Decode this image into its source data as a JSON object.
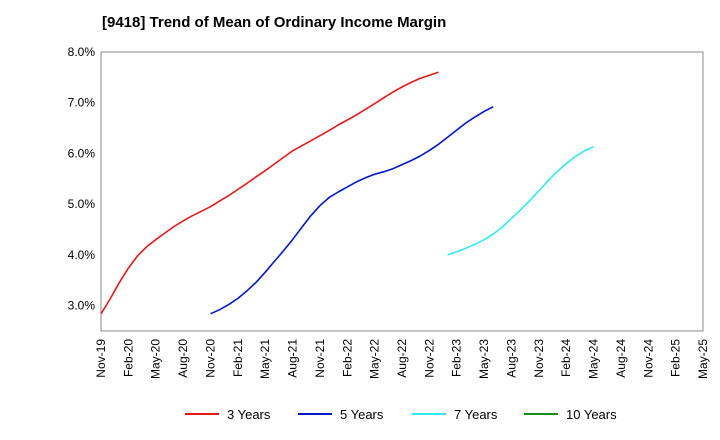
{
  "chart_data": {
    "type": "line",
    "title": "[9418]  Trend of Mean of Ordinary Income Margin",
    "xlabel": "",
    "ylabel": "",
    "ylim": [
      2.5,
      8.0
    ],
    "y_ticks": [
      3.0,
      4.0,
      5.0,
      6.0,
      7.0,
      8.0
    ],
    "y_tick_labels": [
      "3.0%",
      "4.0%",
      "5.0%",
      "6.0%",
      "7.0%",
      "8.0%"
    ],
    "x_tick_labels": [
      "Nov-19",
      "Feb-20",
      "May-20",
      "Aug-20",
      "Nov-20",
      "Feb-21",
      "May-21",
      "Aug-21",
      "Nov-21",
      "Feb-22",
      "May-22",
      "Aug-22",
      "Nov-22",
      "Feb-23",
      "May-23",
      "Aug-23",
      "Nov-23",
      "Feb-24",
      "May-24",
      "Aug-24",
      "Nov-24",
      "Feb-25",
      "May-25"
    ],
    "grid": true,
    "legend_position": "bottom",
    "series": [
      {
        "name": "3 Years",
        "color": "#e31a1c",
        "values": [
          2.84,
          3.13,
          3.45,
          3.74,
          3.98,
          4.16,
          4.3,
          4.43,
          4.56,
          4.67,
          4.77,
          4.86,
          4.95,
          5.06,
          5.17,
          5.29,
          5.41,
          5.54,
          5.66,
          5.79,
          5.92,
          6.05,
          6.15,
          6.25,
          6.35,
          6.45,
          6.56,
          6.66,
          6.76,
          6.87,
          6.98,
          7.1,
          7.21,
          7.31,
          7.4,
          7.48,
          7.54,
          7.6
        ]
      },
      {
        "name": "5 Years",
        "color": "#0018c8",
        "values": [
          null,
          null,
          null,
          null,
          null,
          null,
          null,
          null,
          null,
          null,
          null,
          null,
          2.84,
          2.92,
          3.02,
          3.14,
          3.29,
          3.46,
          3.66,
          3.87,
          4.08,
          4.3,
          4.54,
          4.77,
          4.97,
          5.13,
          5.24,
          5.34,
          5.44,
          5.52,
          5.59,
          5.64,
          5.7,
          5.78,
          5.86,
          5.95,
          6.06,
          6.18,
          6.32,
          6.46,
          6.6,
          6.72,
          6.83,
          6.92
        ]
      },
      {
        "name": "7 Years",
        "color": "#33e8ef",
        "values": [
          null,
          null,
          null,
          null,
          null,
          null,
          null,
          null,
          null,
          null,
          null,
          null,
          null,
          null,
          null,
          null,
          null,
          null,
          null,
          null,
          null,
          null,
          null,
          null,
          null,
          null,
          null,
          null,
          null,
          null,
          null,
          null,
          null,
          null,
          null,
          null,
          null,
          null,
          4.0,
          4.06,
          4.13,
          4.21,
          4.3,
          4.41,
          4.55,
          4.72,
          4.89,
          5.07,
          5.26,
          5.46,
          5.64,
          5.8,
          5.94,
          6.05,
          6.13
        ]
      },
      {
        "name": "10 Years",
        "color": "#1a8c1a",
        "values": []
      }
    ]
  }
}
